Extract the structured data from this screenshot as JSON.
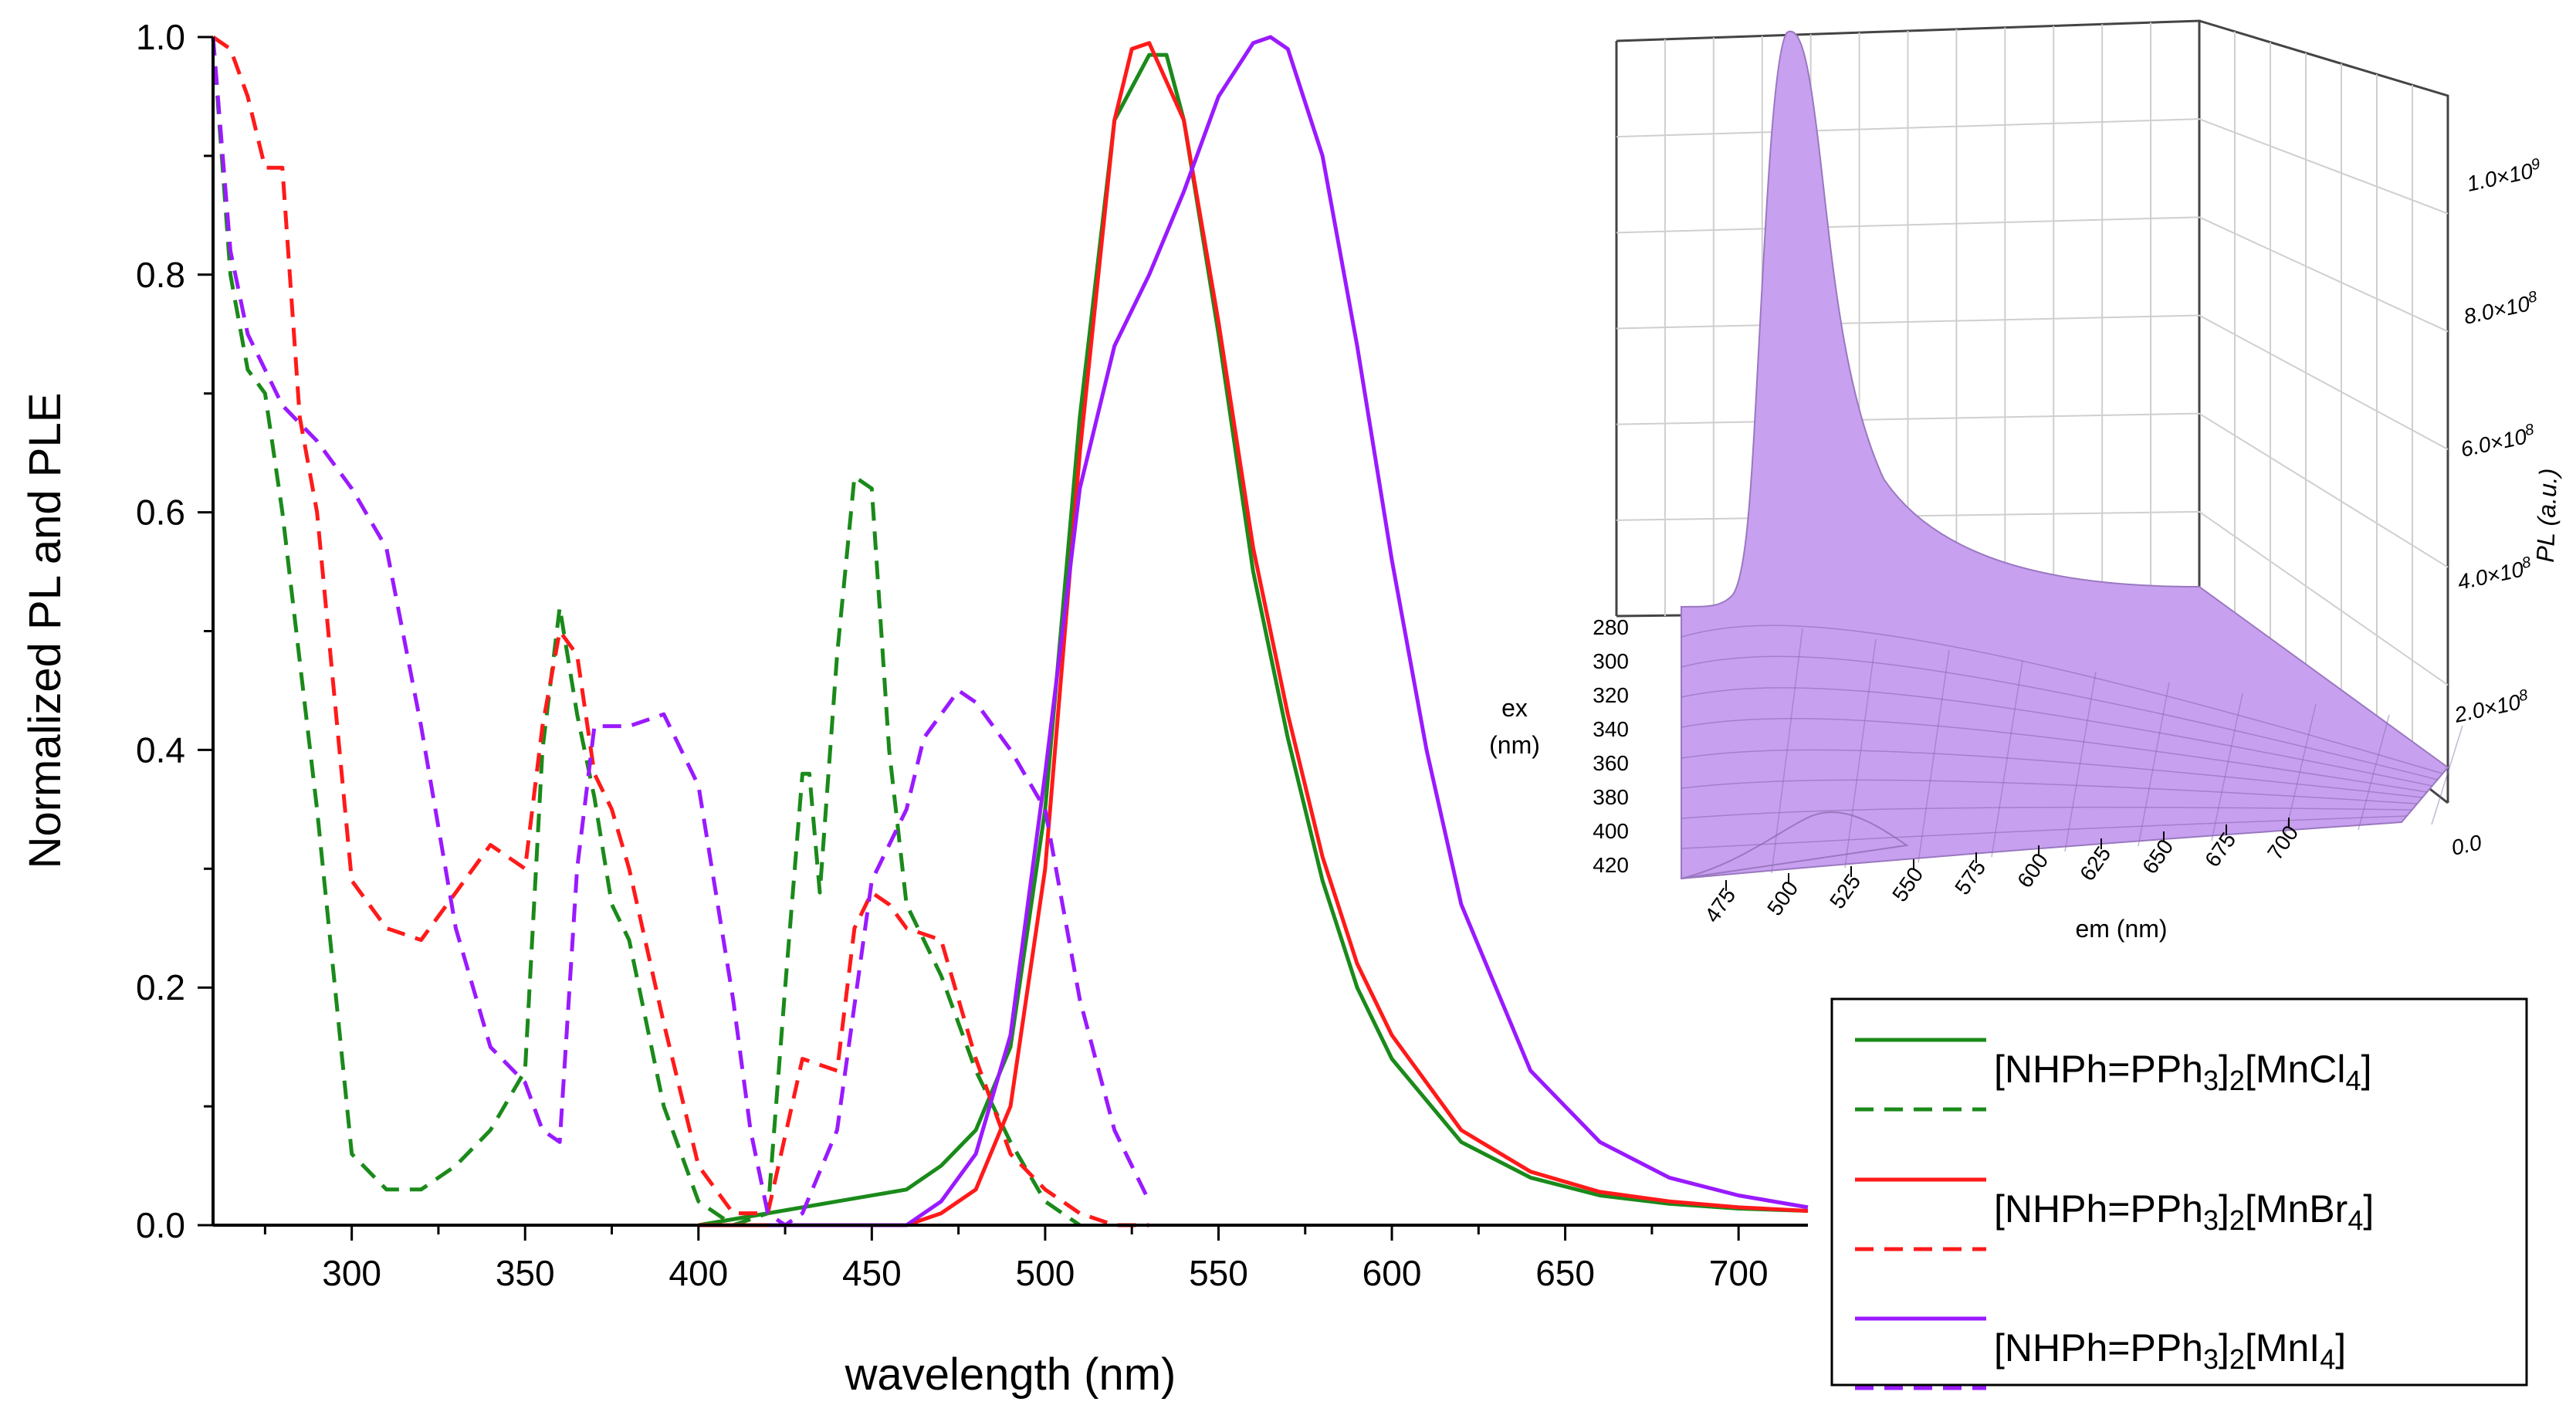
{
  "chart_data": {
    "type": "line",
    "xlabel": "wavelength (nm)",
    "ylabel": "Normalized PL and PLE",
    "xlim": [
      260,
      720
    ],
    "ylim": [
      0.0,
      1.0
    ],
    "x_ticks": [
      "300",
      "350",
      "400",
      "450",
      "500",
      "550",
      "600",
      "650",
      "700"
    ],
    "x_tick_values": [
      300,
      350,
      400,
      450,
      500,
      550,
      600,
      650,
      700
    ],
    "y_ticks": [
      "0.0",
      "0.2",
      "0.4",
      "0.6",
      "0.8",
      "1.0"
    ],
    "y_tick_values": [
      0.0,
      0.2,
      0.4,
      0.6,
      0.8,
      1.0
    ],
    "legend": {
      "placement": "bottom-right",
      "entries": [
        {
          "base": "[NHPh=PPh",
          "sub1": "3",
          "mid": "]",
          "sub2": "2",
          "end": "[MnCl",
          "sub3": "4",
          "close": "]",
          "color": "#1a8a1a"
        },
        {
          "base": "[NHPh=PPh",
          "sub1": "3",
          "mid": "]",
          "sub2": "2",
          "end": "[MnBr",
          "sub3": "4",
          "close": "]",
          "color": "#ff1a1a"
        },
        {
          "base": "[NHPh=PPh",
          "sub1": "3",
          "mid": "]",
          "sub2": "2",
          "end": "[MnI",
          "sub3": "4",
          "close": "]",
          "color": "#9a1aff"
        }
      ]
    },
    "series": [
      {
        "name": "MnCl4 PL",
        "style": "solid",
        "color": "#1a8a1a",
        "x": [
          400,
          420,
          440,
          460,
          470,
          480,
          490,
          500,
          510,
          520,
          530,
          535,
          540,
          550,
          560,
          570,
          580,
          590,
          600,
          620,
          640,
          660,
          680,
          700,
          720
        ],
        "y": [
          0.0,
          0.01,
          0.02,
          0.03,
          0.05,
          0.08,
          0.15,
          0.35,
          0.68,
          0.93,
          0.985,
          0.985,
          0.93,
          0.75,
          0.55,
          0.41,
          0.29,
          0.2,
          0.14,
          0.07,
          0.04,
          0.025,
          0.018,
          0.014,
          0.012
        ]
      },
      {
        "name": "MnCl4 PLE",
        "style": "dashed",
        "color": "#1a8a1a",
        "x": [
          260,
          265,
          270,
          275,
          280,
          290,
          300,
          310,
          320,
          330,
          340,
          350,
          355,
          360,
          365,
          370,
          375,
          380,
          390,
          400,
          410,
          420,
          425,
          430,
          432,
          435,
          440,
          445,
          450,
          455,
          460,
          470,
          480,
          490,
          500,
          510
        ],
        "y": [
          1.0,
          0.8,
          0.72,
          0.7,
          0.6,
          0.35,
          0.06,
          0.03,
          0.03,
          0.05,
          0.08,
          0.13,
          0.4,
          0.52,
          0.43,
          0.36,
          0.27,
          0.24,
          0.1,
          0.02,
          0.0,
          0.01,
          0.2,
          0.38,
          0.38,
          0.28,
          0.48,
          0.63,
          0.62,
          0.4,
          0.27,
          0.21,
          0.13,
          0.07,
          0.02,
          0.0
        ]
      },
      {
        "name": "MnBr4 PL",
        "style": "solid",
        "color": "#ff1a1a",
        "x": [
          400,
          440,
          460,
          470,
          480,
          490,
          500,
          510,
          520,
          525,
          530,
          540,
          550,
          560,
          570,
          580,
          590,
          600,
          620,
          640,
          660,
          680,
          700,
          720
        ],
        "y": [
          0.0,
          0.0,
          0.0,
          0.01,
          0.03,
          0.1,
          0.3,
          0.65,
          0.93,
          0.99,
          0.995,
          0.93,
          0.76,
          0.57,
          0.43,
          0.31,
          0.22,
          0.16,
          0.08,
          0.045,
          0.028,
          0.02,
          0.015,
          0.012
        ]
      },
      {
        "name": "MnBr4 PLE",
        "style": "dashed",
        "color": "#ff1a1a",
        "x": [
          260,
          265,
          270,
          275,
          280,
          285,
          290,
          300,
          310,
          320,
          330,
          340,
          345,
          350,
          355,
          360,
          365,
          370,
          375,
          380,
          390,
          400,
          410,
          420,
          430,
          440,
          445,
          450,
          455,
          460,
          470,
          480,
          490,
          500,
          510,
          520,
          530
        ],
        "y": [
          1.0,
          0.99,
          0.95,
          0.89,
          0.89,
          0.68,
          0.6,
          0.29,
          0.25,
          0.24,
          0.28,
          0.32,
          0.31,
          0.3,
          0.42,
          0.5,
          0.48,
          0.38,
          0.35,
          0.3,
          0.17,
          0.05,
          0.01,
          0.01,
          0.14,
          0.13,
          0.25,
          0.28,
          0.27,
          0.25,
          0.24,
          0.14,
          0.06,
          0.03,
          0.01,
          0.0,
          0.0
        ]
      },
      {
        "name": "MnI4 PL",
        "style": "solid",
        "color": "#9a1aff",
        "x": [
          420,
          460,
          470,
          480,
          490,
          500,
          510,
          520,
          530,
          540,
          550,
          560,
          565,
          570,
          580,
          590,
          600,
          610,
          620,
          640,
          660,
          680,
          700,
          720
        ],
        "y": [
          0.0,
          0.0,
          0.02,
          0.06,
          0.16,
          0.38,
          0.62,
          0.74,
          0.8,
          0.87,
          0.95,
          0.995,
          1.0,
          0.99,
          0.9,
          0.74,
          0.56,
          0.4,
          0.27,
          0.13,
          0.07,
          0.04,
          0.025,
          0.015
        ]
      },
      {
        "name": "MnI4 PLE",
        "style": "dashed",
        "color": "#9a1aff",
        "x": [
          260,
          265,
          270,
          275,
          280,
          290,
          300,
          310,
          320,
          330,
          340,
          350,
          355,
          360,
          365,
          370,
          380,
          390,
          400,
          410,
          415,
          420,
          425,
          430,
          440,
          450,
          455,
          460,
          465,
          470,
          475,
          480,
          490,
          500,
          510,
          520,
          530
        ],
        "y": [
          1.0,
          0.82,
          0.75,
          0.72,
          0.69,
          0.66,
          0.62,
          0.57,
          0.42,
          0.25,
          0.15,
          0.12,
          0.08,
          0.07,
          0.3,
          0.42,
          0.42,
          0.43,
          0.37,
          0.19,
          0.08,
          0.01,
          0.0,
          0.01,
          0.08,
          0.29,
          0.32,
          0.35,
          0.41,
          0.43,
          0.45,
          0.44,
          0.4,
          0.35,
          0.19,
          0.08,
          0.02
        ]
      }
    ]
  },
  "inset": {
    "type": "3d-surface",
    "xlabel": "em (nm)",
    "ylabel_line1": "ex",
    "ylabel_line2": "(nm)",
    "zlabel": "PL (a.u.)",
    "surface_color": "#c8a0f0",
    "em_ticks": [
      "475",
      "500",
      "525",
      "550",
      "575",
      "600",
      "625",
      "650",
      "675",
      "700"
    ],
    "ex_ticks": [
      "280",
      "300",
      "320",
      "340",
      "360",
      "380",
      "400",
      "420"
    ],
    "z_ticks": [
      {
        "mant": "0.0",
        "times": "",
        "exp": ""
      },
      {
        "mant": "2.0",
        "times": "×10",
        "exp": "8"
      },
      {
        "mant": "4.0",
        "times": "×10",
        "exp": "8"
      },
      {
        "mant": "6.0",
        "times": "×10",
        "exp": "8"
      },
      {
        "mant": "8.0",
        "times": "×10",
        "exp": "8"
      },
      {
        "mant": "1.0",
        "times": "×10",
        "exp": "9"
      }
    ]
  }
}
